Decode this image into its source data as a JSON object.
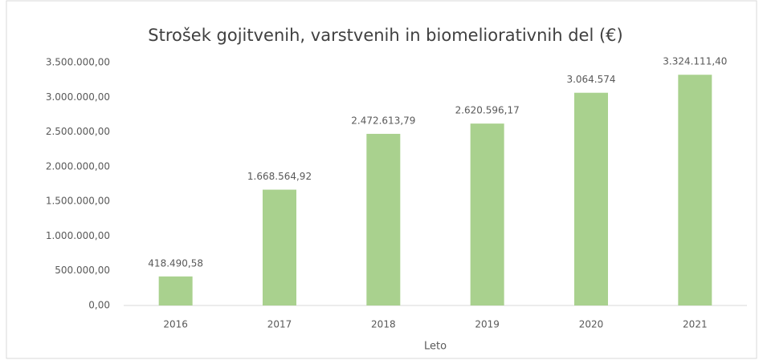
{
  "chart_data": {
    "type": "bar",
    "title": "Strošek gojitvenih, varstvenih in biomeliorativnih del (€)",
    "x_label": "Leto",
    "categories": [
      "2016",
      "2017",
      "2018",
      "2019",
      "2020",
      "2021"
    ],
    "values": [
      418490.58,
      1668564.92,
      2472613.79,
      2620596.17,
      3064574,
      3324111.4
    ],
    "value_labels": [
      "418.490,58",
      "1.668.564,92",
      "2.472.613,79",
      "2.620.596,17",
      "3.064.574",
      "3.324.111,40"
    ],
    "color": "#a9d18e",
    "ylim": [
      0,
      3500000
    ],
    "yticks": [
      {
        "value": 0,
        "label": "0,00"
      },
      {
        "value": 500000,
        "label": "500.000,00"
      },
      {
        "value": 1000000,
        "label": "1.000.000,00"
      },
      {
        "value": 1500000,
        "label": "1.500.000,00"
      },
      {
        "value": 2000000,
        "label": "2.000.000,00"
      },
      {
        "value": 2500000,
        "label": "2.500.000,00"
      },
      {
        "value": 3000000,
        "label": "3.000.000,00"
      },
      {
        "value": 3500000,
        "label": "3.500.000,00"
      }
    ],
    "grid": false
  }
}
